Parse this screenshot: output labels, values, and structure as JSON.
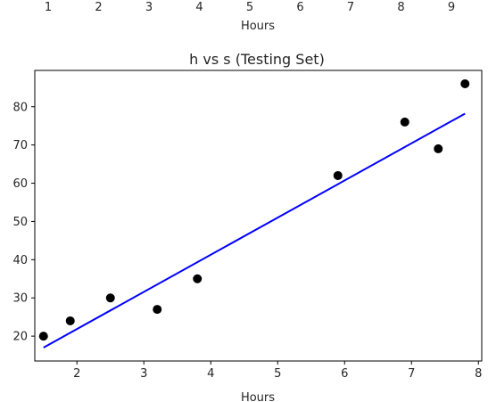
{
  "top_partial_chart": {
    "xlabel": "Hours",
    "xticks": [
      1,
      2,
      3,
      4,
      5,
      6,
      7,
      8,
      9
    ]
  },
  "chart_data": {
    "type": "scatter",
    "title": "h vs s (Testing Set)",
    "xlabel": "Hours",
    "ylabel": "",
    "xlim": [
      1.37,
      8.05
    ],
    "ylim": [
      13.5,
      89.5
    ],
    "xticks": [
      2,
      3,
      4,
      5,
      6,
      7,
      8
    ],
    "yticks": [
      20,
      30,
      40,
      50,
      60,
      70,
      80
    ],
    "points": [
      {
        "x": 1.5,
        "y": 20
      },
      {
        "x": 1.9,
        "y": 24
      },
      {
        "x": 2.5,
        "y": 30
      },
      {
        "x": 3.2,
        "y": 27
      },
      {
        "x": 3.8,
        "y": 35
      },
      {
        "x": 5.9,
        "y": 62
      },
      {
        "x": 6.9,
        "y": 76
      },
      {
        "x": 7.4,
        "y": 69
      },
      {
        "x": 7.8,
        "y": 86
      }
    ],
    "regression_line": {
      "x": [
        1.5,
        7.8
      ],
      "y": [
        17.0,
        78.2
      ]
    },
    "point_color": "#000000",
    "line_color": "#0000ff"
  }
}
